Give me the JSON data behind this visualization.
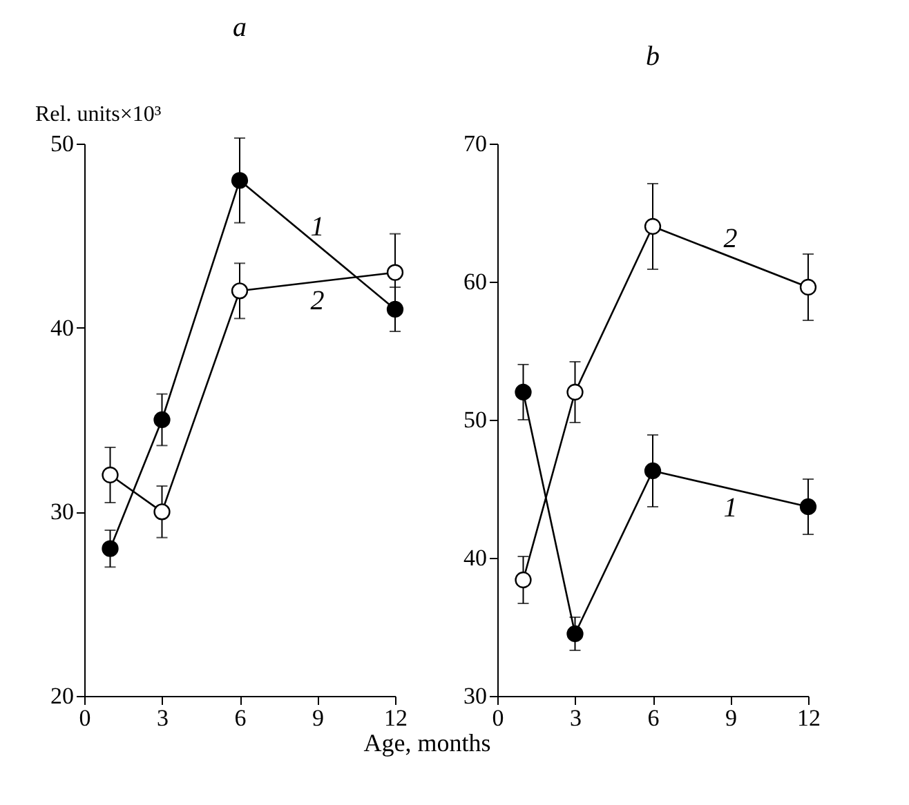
{
  "chart_data": [
    {
      "type": "line",
      "title": "a",
      "ylabel": "Rel. units×10³",
      "xlabel": "Age, months",
      "x": [
        1,
        3,
        6,
        12
      ],
      "xlim": [
        0,
        12
      ],
      "xticks": [
        0,
        3,
        6,
        9,
        12
      ],
      "ylim": [
        20,
        50
      ],
      "yticks": [
        20,
        30,
        40,
        50
      ],
      "grid": false,
      "marker": "circle",
      "series": [
        {
          "name": "1",
          "color": "#000000",
          "values": [
            28,
            35,
            48,
            41
          ],
          "errors": [
            1,
            1.4,
            2.3,
            1.2
          ]
        },
        {
          "name": "2",
          "color": "#ffffff",
          "values": [
            32,
            30,
            42,
            43
          ],
          "errors": [
            1.5,
            1.4,
            1.5,
            2.1
          ]
        }
      ]
    },
    {
      "type": "line",
      "title": "b",
      "x": [
        1,
        3,
        6,
        12
      ],
      "xlim": [
        0,
        12
      ],
      "xticks": [
        0,
        3,
        6,
        9,
        12
      ],
      "ylim": [
        30,
        70
      ],
      "yticks": [
        30,
        40,
        50,
        60,
        70
      ],
      "grid": false,
      "marker": "circle",
      "series": [
        {
          "name": "1",
          "color": "#000000",
          "values": [
            52,
            34.5,
            46.3,
            43.7
          ],
          "errors": [
            2,
            1.2,
            2.6,
            2
          ]
        },
        {
          "name": "2",
          "color": "#ffffff",
          "values": [
            38.4,
            52,
            64,
            59.6
          ],
          "errors": [
            1.7,
            2.2,
            3.1,
            2.4
          ]
        }
      ]
    }
  ]
}
